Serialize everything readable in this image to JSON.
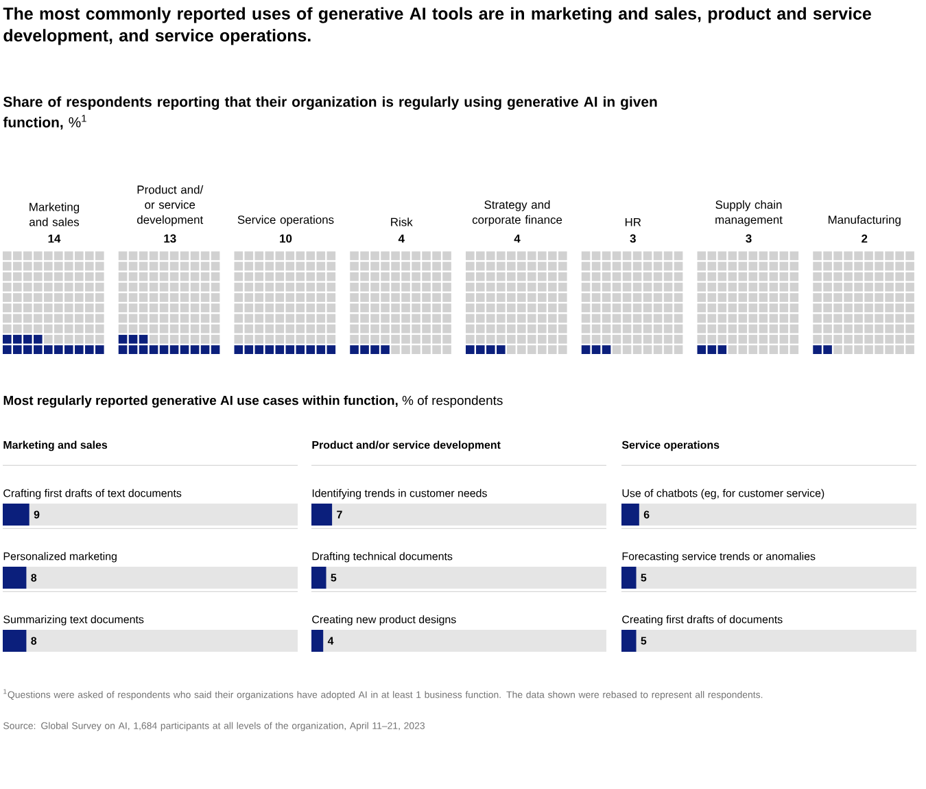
{
  "chart_data": [
    {
      "type": "other",
      "title": "The most commonly reported uses of generative AI tools are in marketing and sales, product and service development, and service operations.",
      "subtitle": "**Share of respondents reporting that their organization is regularly using generative AI in given function,** %$^{1}$",
      "categories": [
        "Marketing and sales",
        "Product and/ or service development",
        "Service operations",
        "Risk",
        "Strategy and corporate finance",
        "HR",
        "Supply chain management",
        "Manufacturing"
      ],
      "values": [
        14,
        13,
        10,
        4,
        4,
        3,
        3,
        2
      ],
      "color": "#0b1f7c",
      "data_labels": true
    },
    {
      "type": "bar",
      "orientation": "horizontal",
      "title": "**Most regularly reported generative AI use cases within function,** % of respondents",
      "subtitle": "Marketing and sales",
      "categories": [
        "Crafting first drafts of text documents",
        "Personalized marketing",
        "Summarizing text documents"
      ],
      "values": [
        9,
        8,
        8
      ],
      "color": "#0b1f7c",
      "xlim": [
        0,
        100
      ],
      "tick_labels": false,
      "data_labels": true
    },
    {
      "type": "bar",
      "orientation": "horizontal",
      "subtitle": "Product and/or service development",
      "categories": [
        "Identifying trends in customer needs",
        "Drafting technical documents",
        "Creating new product designs"
      ],
      "values": [
        7,
        5,
        4
      ],
      "color": "#0b1f7c",
      "xlim": [
        0,
        100
      ],
      "tick_labels": false,
      "data_labels": true
    },
    {
      "type": "bar",
      "orientation": "horizontal",
      "subtitle": "Service operations",
      "categories": [
        "Use of chatbots (eg, for customer service)",
        "Forecasting service trends or anomalies",
        "Creating first drafts of documents"
      ],
      "values": [
        6,
        5,
        5
      ],
      "color": "#0b1f7c",
      "xlim": [
        0,
        100
      ],
      "tick_labels": false,
      "data_labels": true,
      "annotations": [
        "$^{1}$Questions were asked of respondents who said their organizations have adopted AI in at least 1 business function. The data shown were rebased to represent all respondents.",
        "Source: Global Survey on AI, 1,684 participants at all levels of the organization, April 11–21, 2023"
      ]
    }
  ]
}
